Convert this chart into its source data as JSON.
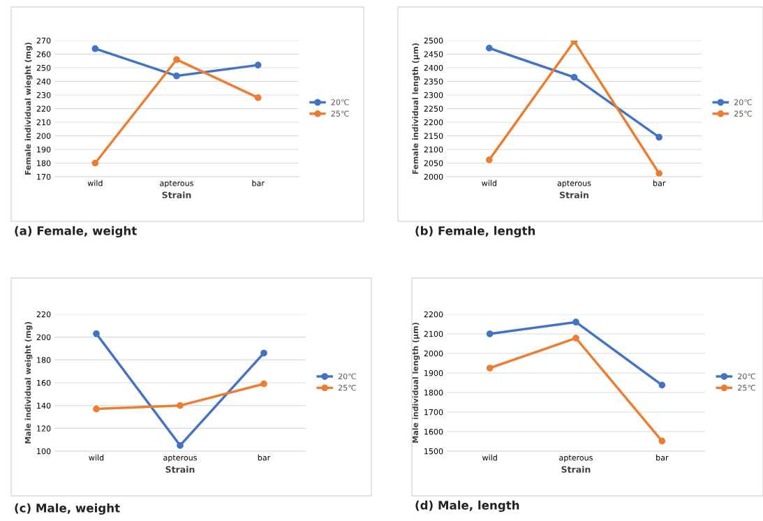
{
  "chart_data": [
    {
      "type": "line",
      "xlabel": "Strain",
      "ylabel": "Female individual wieght (mg)",
      "categories": [
        "wild",
        "apterous",
        "bar"
      ],
      "ylim": [
        170,
        270
      ],
      "yticks": [
        170,
        180,
        190,
        200,
        210,
        220,
        230,
        240,
        250,
        260,
        270
      ],
      "grid": "y",
      "legend": "right",
      "marker": "circle",
      "annotations": [
        "(a) Female, weight"
      ],
      "series": [
        {
          "name": "20℃",
          "color": "#4472c4",
          "values": [
            264,
            244,
            252
          ]
        },
        {
          "name": "25℃",
          "color": "#ed7d31",
          "values": [
            180,
            256,
            228
          ]
        }
      ]
    },
    {
      "type": "line",
      "xlabel": "Strain",
      "ylabel": "Female individual length (μm)",
      "categories": [
        "wild",
        "apterous",
        "bar"
      ],
      "ylim": [
        2000,
        2500
      ],
      "yticks": [
        2000,
        2050,
        2100,
        2150,
        2200,
        2250,
        2300,
        2350,
        2400,
        2450,
        2500
      ],
      "grid": "y",
      "legend": "right",
      "marker": "circle",
      "annotations": [
        "(b) Female, length"
      ],
      "series": [
        {
          "name": "20℃",
          "color": "#4472c4",
          "values": [
            2472,
            2365,
            2145
          ]
        },
        {
          "name": "25℃",
          "color": "#ed7d31",
          "values": [
            2062,
            2497,
            2012
          ]
        }
      ]
    },
    {
      "type": "line",
      "xlabel": "Strain",
      "ylabel": "Male individual weight (mg)",
      "categories": [
        "wild",
        "apterous",
        "bar"
      ],
      "ylim": [
        100,
        220
      ],
      "yticks": [
        100,
        120,
        140,
        160,
        180,
        200,
        220
      ],
      "grid": "y",
      "legend": "right",
      "marker": "circle",
      "annotations": [
        "(c) Male, weight"
      ],
      "series": [
        {
          "name": "20℃",
          "color": "#4472c4",
          "values": [
            203,
            105,
            186
          ]
        },
        {
          "name": "25℃",
          "color": "#ed7d31",
          "values": [
            137,
            140,
            159
          ]
        }
      ]
    },
    {
      "type": "line",
      "xlabel": "Strain",
      "ylabel": "Male individual length (μm)",
      "categories": [
        "wild",
        "apterous",
        "bar"
      ],
      "ylim": [
        1500,
        2200
      ],
      "yticks": [
        1500,
        1600,
        1700,
        1800,
        1900,
        2000,
        2100,
        2200
      ],
      "grid": "y",
      "legend": "right",
      "marker": "circle",
      "annotations": [
        "(d) Male, length"
      ],
      "series": [
        {
          "name": "20℃",
          "color": "#4472c4",
          "values": [
            2100,
            2160,
            1838
          ]
        },
        {
          "name": "25℃",
          "color": "#ed7d31",
          "values": [
            1925,
            2078,
            1552
          ]
        }
      ]
    }
  ]
}
